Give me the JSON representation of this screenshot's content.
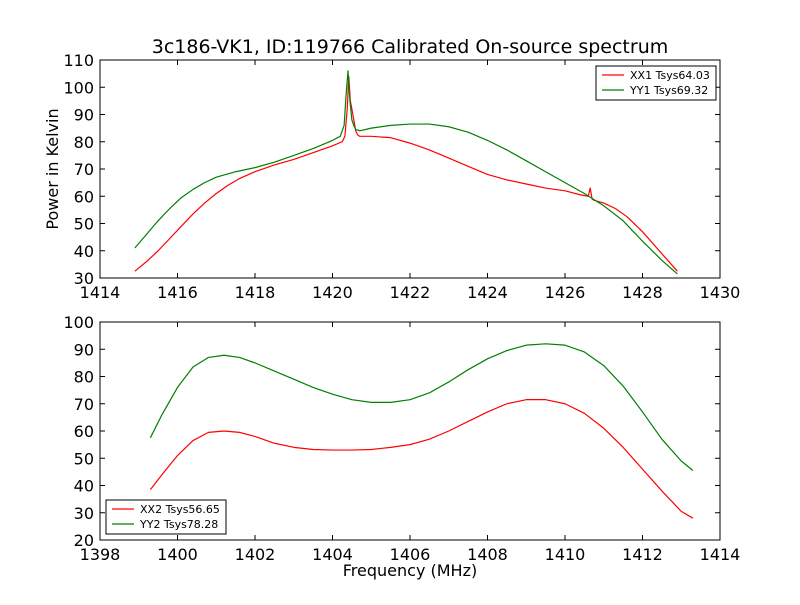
{
  "figure": {
    "title": "3c186-VK1, ID:119766 Calibrated On-source spectrum",
    "ylabel": "Power in Kelvin",
    "xlabel": "Frequency (MHz)"
  },
  "chart_data": [
    {
      "type": "line",
      "title": "3c186-VK1, ID:119766 Calibrated On-source spectrum",
      "xlabel": "",
      "ylabel": "Power in Kelvin",
      "xlim": [
        1414,
        1430
      ],
      "ylim": [
        30,
        110
      ],
      "xticks": [
        1414,
        1416,
        1418,
        1420,
        1422,
        1424,
        1426,
        1428,
        1430
      ],
      "yticks": [
        30,
        40,
        50,
        60,
        70,
        80,
        90,
        100,
        110
      ],
      "grid": false,
      "legend_position": "top-right",
      "series": [
        {
          "name": "XX1 Tsys64.03",
          "color": "#ff0000",
          "x": [
            1414.9,
            1415.2,
            1415.5,
            1415.8,
            1416.1,
            1416.4,
            1416.7,
            1417.0,
            1417.3,
            1417.6,
            1418.0,
            1418.5,
            1419.0,
            1419.5,
            1420.0,
            1420.25,
            1420.32,
            1420.38,
            1420.42,
            1420.46,
            1420.5,
            1420.55,
            1420.6,
            1420.65,
            1420.7,
            1420.8,
            1421.0,
            1421.5,
            1422.0,
            1422.5,
            1423.0,
            1423.5,
            1424.0,
            1424.5,
            1425.0,
            1425.5,
            1426.0,
            1426.4,
            1426.6,
            1426.65,
            1426.7,
            1426.75,
            1427.0,
            1427.3,
            1427.6,
            1428.0,
            1428.4,
            1428.9
          ],
          "y": [
            32.5,
            36,
            40,
            44.5,
            49,
            53.5,
            57.5,
            61,
            64,
            66.5,
            69,
            71.5,
            73.5,
            76,
            78.5,
            80,
            82,
            92,
            104,
            95,
            92,
            88,
            84,
            82.5,
            82,
            82,
            82,
            81.5,
            79.5,
            77,
            74,
            71,
            68,
            66,
            64.5,
            63,
            62,
            60.5,
            60,
            63,
            59,
            58.5,
            57.5,
            55.5,
            52.5,
            47,
            40.5,
            32.5
          ]
        },
        {
          "name": "YY1 Tsys69.32",
          "color": "#008000",
          "x": [
            1414.9,
            1415.2,
            1415.5,
            1415.8,
            1416.1,
            1416.4,
            1416.7,
            1417.0,
            1417.5,
            1418.0,
            1418.5,
            1419.0,
            1419.5,
            1420.0,
            1420.2,
            1420.3,
            1420.35,
            1420.4,
            1420.45,
            1420.5,
            1420.55,
            1420.6,
            1420.7,
            1421.0,
            1421.5,
            1422.0,
            1422.5,
            1423.0,
            1423.5,
            1424.0,
            1424.5,
            1425.0,
            1425.5,
            1426.0,
            1426.5,
            1427.0,
            1427.5,
            1428.0,
            1428.5,
            1428.9
          ],
          "y": [
            41,
            46,
            51,
            55.5,
            59.5,
            62.5,
            65,
            67,
            69,
            70.5,
            72.5,
            75,
            77.5,
            80.5,
            82,
            86,
            97,
            106,
            95,
            88,
            86,
            84.5,
            84,
            85,
            86,
            86.5,
            86.5,
            85.5,
            83.5,
            80.5,
            77,
            73,
            69,
            65,
            61,
            56.5,
            51,
            43.5,
            36.5,
            31.5
          ]
        }
      ]
    },
    {
      "type": "line",
      "title": "",
      "xlabel": "Frequency (MHz)",
      "ylabel": "",
      "xlim": [
        1398,
        1414
      ],
      "ylim": [
        20,
        100
      ],
      "xticks": [
        1398,
        1400,
        1402,
        1404,
        1406,
        1408,
        1410,
        1412,
        1414
      ],
      "yticks": [
        20,
        30,
        40,
        50,
        60,
        70,
        80,
        90,
        100
      ],
      "grid": false,
      "legend_position": "bottom-left",
      "series": [
        {
          "name": "XX2 Tsys56.65",
          "color": "#ff0000",
          "x": [
            1399.3,
            1399.6,
            1400.0,
            1400.4,
            1400.8,
            1401.2,
            1401.6,
            1402.0,
            1402.5,
            1403.0,
            1403.5,
            1404.0,
            1404.5,
            1405.0,
            1405.5,
            1406.0,
            1406.5,
            1407.0,
            1407.5,
            1408.0,
            1408.5,
            1409.0,
            1409.5,
            1410.0,
            1410.5,
            1411.0,
            1411.5,
            1412.0,
            1412.5,
            1413.0,
            1413.3
          ],
          "y": [
            38.5,
            44,
            51,
            56.5,
            59.5,
            60,
            59.5,
            58,
            55.5,
            54,
            53.2,
            53,
            53,
            53.2,
            54,
            55,
            57,
            60,
            63.5,
            67,
            70,
            71.5,
            71.5,
            70,
            66.5,
            61,
            54,
            46,
            38,
            30.5,
            28
          ]
        },
        {
          "name": "YY2 Tsys78.28",
          "color": "#008000",
          "x": [
            1399.3,
            1399.6,
            1400.0,
            1400.4,
            1400.8,
            1401.2,
            1401.6,
            1402.0,
            1402.5,
            1403.0,
            1403.5,
            1404.0,
            1404.5,
            1405.0,
            1405.5,
            1406.0,
            1406.5,
            1407.0,
            1407.5,
            1408.0,
            1408.5,
            1409.0,
            1409.5,
            1410.0,
            1410.5,
            1411.0,
            1411.5,
            1412.0,
            1412.5,
            1413.0,
            1413.3
          ],
          "y": [
            57.5,
            66,
            76,
            83.5,
            87,
            87.8,
            87,
            85,
            82,
            79,
            76,
            73.5,
            71.5,
            70.5,
            70.5,
            71.5,
            74,
            78,
            82.5,
            86.5,
            89.5,
            91.5,
            92,
            91.5,
            89,
            84,
            76.5,
            67,
            57,
            49,
            45.5
          ]
        }
      ]
    }
  ]
}
